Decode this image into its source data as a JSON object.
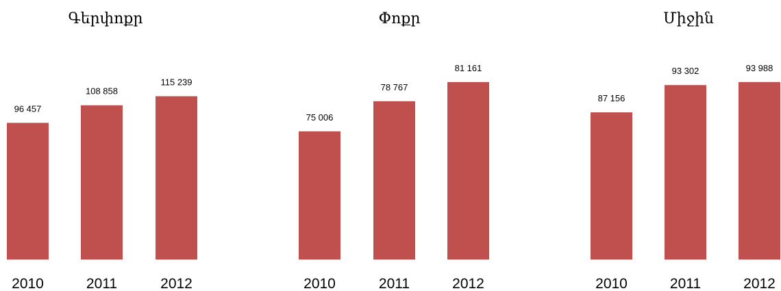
{
  "chart_data": [
    {
      "type": "bar",
      "title": "Գերփոքր",
      "categories": [
        "2010",
        "2011",
        "2012"
      ],
      "values": [
        96457,
        108858,
        115239
      ],
      "value_labels": [
        "96 457",
        "108 858",
        "115 239"
      ],
      "ylim": [
        0,
        130000
      ],
      "grid": false,
      "color": "#c0504d"
    },
    {
      "type": "bar",
      "title": "Փոքր",
      "categories": [
        "2010",
        "2011",
        "2012"
      ],
      "values": [
        75006,
        78767,
        81161
      ],
      "value_labels": [
        "75 006",
        "78 767",
        "81 161"
      ],
      "ylim": [
        59000,
        82000
      ],
      "grid": false,
      "color": "#c0504d"
    },
    {
      "type": "bar",
      "title": "Միջին",
      "categories": [
        "2010",
        "2011",
        "2012"
      ],
      "values": [
        87156,
        93302,
        93988
      ],
      "value_labels": [
        "87 156",
        "93 302",
        "93 988"
      ],
      "ylim": [
        54000,
        95500
      ],
      "grid": false,
      "color": "#c0504d"
    }
  ]
}
